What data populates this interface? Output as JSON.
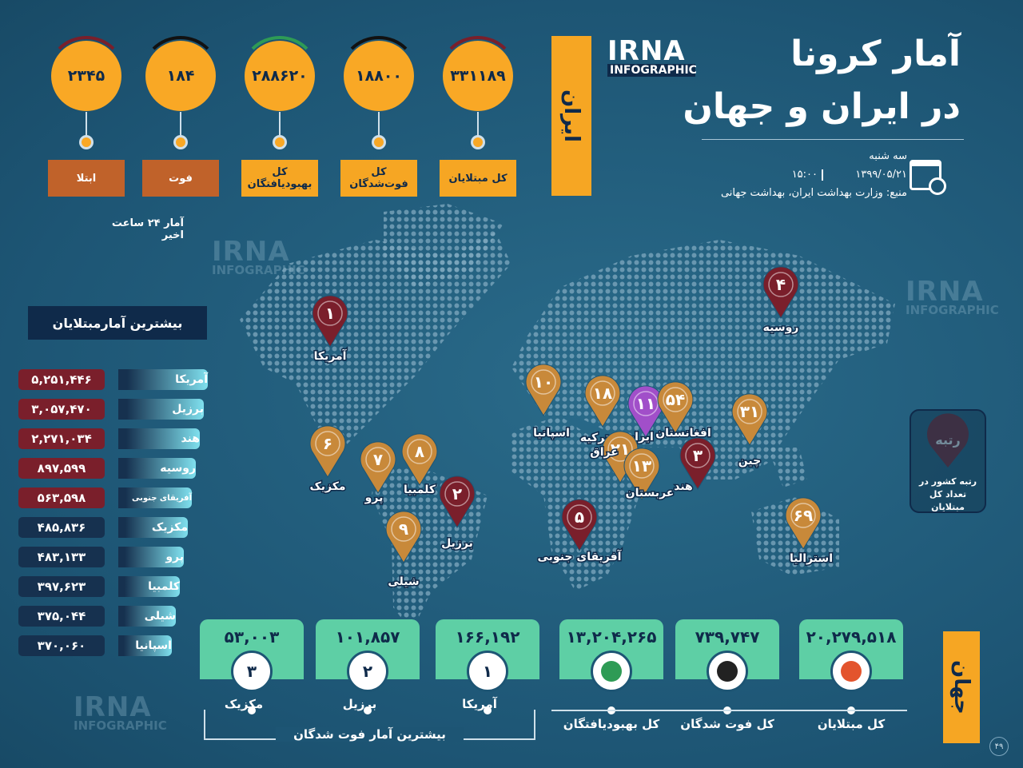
{
  "header": {
    "title_line1": "آمار کرونا",
    "title_line2": "در ایران و جهان",
    "logo": {
      "name": "IRNA",
      "sub": "INFOGRAPHIC"
    },
    "day": "سه شنبه",
    "date": "۱۳۹۹/۰۵/۲۱",
    "time": "۱۵:۰۰",
    "source": "منبع: وزارت بهداشت ایران، بهداشت جهانی"
  },
  "iran": {
    "label": "ایران",
    "stats": [
      {
        "value": "۳۳۱۱۸۹",
        "label": "کل مبتلایان"
      },
      {
        "value": "۱۸۸۰۰",
        "label": "کل فوت‌شدگان"
      },
      {
        "value": "۲۸۸۶۲۰",
        "label": "کل بهبودیافتگان"
      },
      {
        "value": "۱۸۴",
        "label": "فوت"
      },
      {
        "value": "۲۳۴۵",
        "label": "ابتلا"
      }
    ],
    "note": "آمار ۲۴ ساعت اخیر"
  },
  "top_infected": {
    "title": "بیشترین آمارمبتلایان",
    "rows": [
      {
        "country": "آمریکا",
        "value": "۵,۲۵۱,۴۴۶"
      },
      {
        "country": "برزیل",
        "value": "۳,۰۵۷,۴۷۰"
      },
      {
        "country": "هند",
        "value": "۲,۲۷۱,۰۳۴"
      },
      {
        "country": "روسیه",
        "value": "۸۹۷,۵۹۹"
      },
      {
        "country": "آفریقای جنوبی",
        "value": "۵۶۳,۵۹۸"
      },
      {
        "country": "مکزیک",
        "value": "۴۸۵,۸۳۶"
      },
      {
        "country": "پرو",
        "value": "۴۸۳,۱۳۳"
      },
      {
        "country": "کلمبیا",
        "value": "۳۹۷,۶۲۳"
      },
      {
        "country": "شیلی",
        "value": "۳۷۵,۰۴۴"
      },
      {
        "country": "اسپانیا",
        "value": "۳۷۰,۰۶۰"
      }
    ]
  },
  "map": {
    "pins": [
      {
        "rank": "۱",
        "country": "آمریکا"
      },
      {
        "rank": "۴",
        "country": "روسیه"
      },
      {
        "rank": "۱۰",
        "country": "اسپانیا"
      },
      {
        "rank": "۱۸",
        "country": "ترکیه"
      },
      {
        "rank": "۱۱",
        "country": "ایران"
      },
      {
        "rank": "۵۴",
        "country": "افغانستان"
      },
      {
        "rank": "۳۱",
        "country": "چین"
      },
      {
        "rank": "۶",
        "country": "مکزیک"
      },
      {
        "rank": "۷",
        "country": "پرو"
      },
      {
        "rank": "۸",
        "country": "کلمبیا"
      },
      {
        "rank": "۲",
        "country": "برزیل"
      },
      {
        "rank": "۹",
        "country": "شیلی"
      },
      {
        "rank": "۲۱",
        "country": "عراق"
      },
      {
        "rank": "۱۳",
        "country": "عربستان"
      },
      {
        "rank": "۳",
        "country": "هند"
      },
      {
        "rank": "۵",
        "country": "آفریقای جنوبی"
      },
      {
        "rank": "۶۹",
        "country": "استرالیا"
      }
    ],
    "legend": {
      "title": "رتبه",
      "text": "رتبه کشور در تعداد کل مبتلایان"
    }
  },
  "world": {
    "label": "جهان",
    "stats": [
      {
        "value": "۲۰,۲۷۹,۵۱۸",
        "label": "کل مبتلایان"
      },
      {
        "value": "۷۳۹,۷۴۷",
        "label": "کل فوت شدگان"
      },
      {
        "value": "۱۳,۲۰۴,۲۶۵",
        "label": "کل بهبودیافتگان"
      }
    ],
    "top_deaths": {
      "title": "بیشترین آمار فوت شدگان",
      "rows": [
        {
          "rank": "۱",
          "country": "آمریکا",
          "value": "۱۶۶,۱۹۲"
        },
        {
          "rank": "۲",
          "country": "برزیل",
          "value": "۱۰۱,۸۵۷"
        },
        {
          "rank": "۳",
          "country": "مکزیک",
          "value": "۵۳,۰۰۳"
        }
      ]
    }
  },
  "page_number": "۴۹"
}
